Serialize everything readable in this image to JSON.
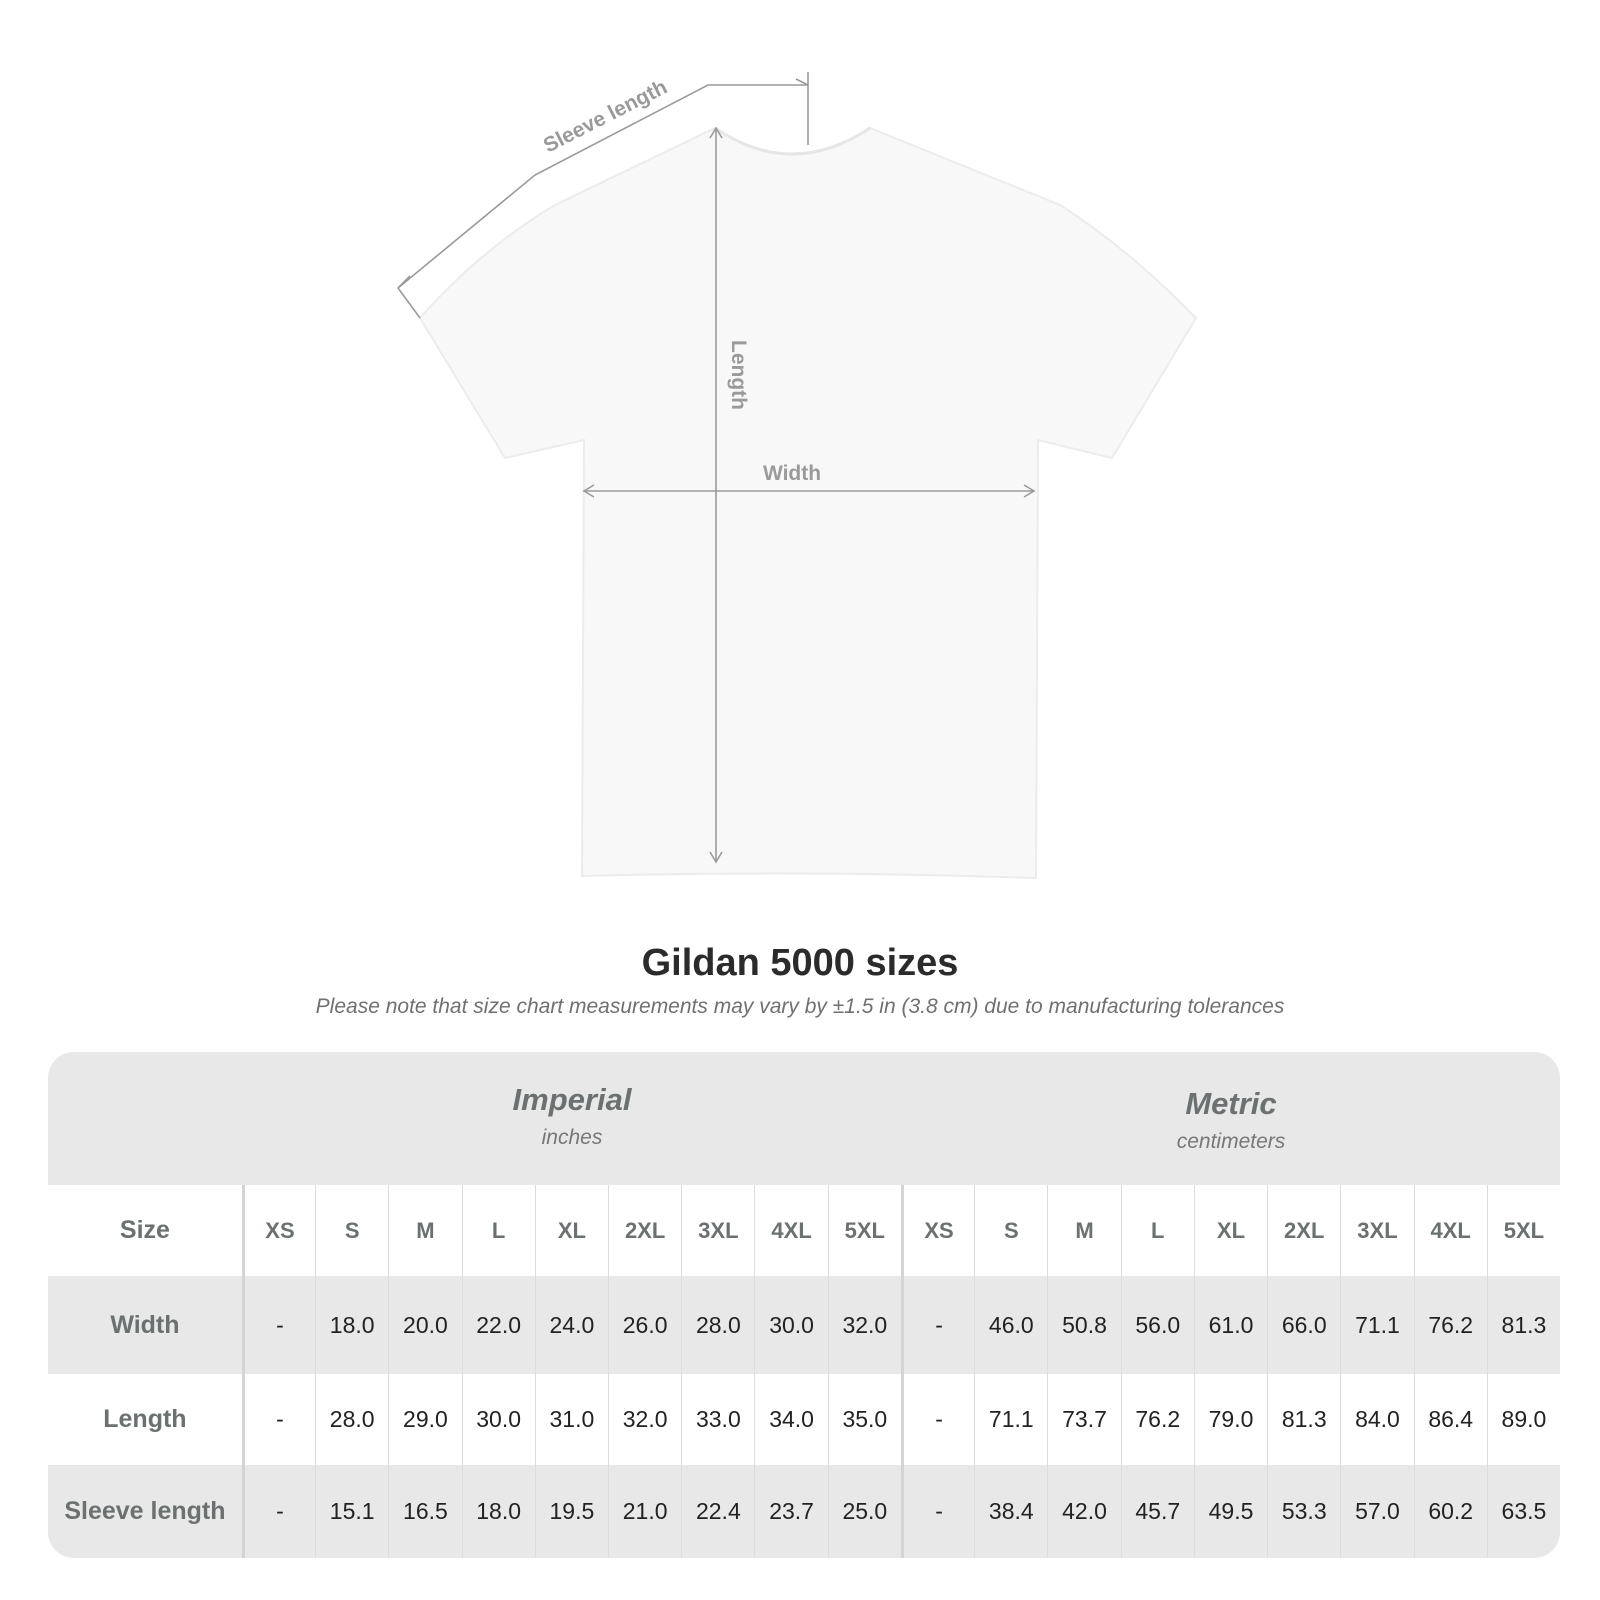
{
  "diagram": {
    "sleeve_label": "Sleeve length",
    "length_label": "Length",
    "width_label": "Width"
  },
  "title": "Gildan 5000 sizes",
  "note": "Please note that size chart measurements may vary by ±1.5 in (3.8 cm) due to manufacturing tolerances",
  "table": {
    "imperial": {
      "label": "Imperial",
      "unit": "inches"
    },
    "metric": {
      "label": "Metric",
      "unit": "centimeters"
    },
    "size_label": "Size",
    "sizes": [
      "XS",
      "S",
      "M",
      "L",
      "XL",
      "2XL",
      "3XL",
      "4XL",
      "5XL"
    ],
    "rows": [
      {
        "label": "Width",
        "imperial": [
          "-",
          "18.0",
          "20.0",
          "22.0",
          "24.0",
          "26.0",
          "28.0",
          "30.0",
          "32.0"
        ],
        "metric": [
          "-",
          "46.0",
          "50.8",
          "56.0",
          "61.0",
          "66.0",
          "71.1",
          "76.2",
          "81.3"
        ]
      },
      {
        "label": "Length",
        "imperial": [
          "-",
          "28.0",
          "29.0",
          "30.0",
          "31.0",
          "32.0",
          "33.0",
          "34.0",
          "35.0"
        ],
        "metric": [
          "-",
          "71.1",
          "73.7",
          "76.2",
          "79.0",
          "81.3",
          "84.0",
          "86.4",
          "89.0"
        ]
      },
      {
        "label": "Sleeve length",
        "imperial": [
          "-",
          "15.1",
          "16.5",
          "18.0",
          "19.5",
          "21.0",
          "22.4",
          "23.7",
          "25.0"
        ],
        "metric": [
          "-",
          "38.4",
          "42.0",
          "45.7",
          "49.5",
          "53.3",
          "57.0",
          "60.2",
          "63.5"
        ]
      }
    ]
  }
}
